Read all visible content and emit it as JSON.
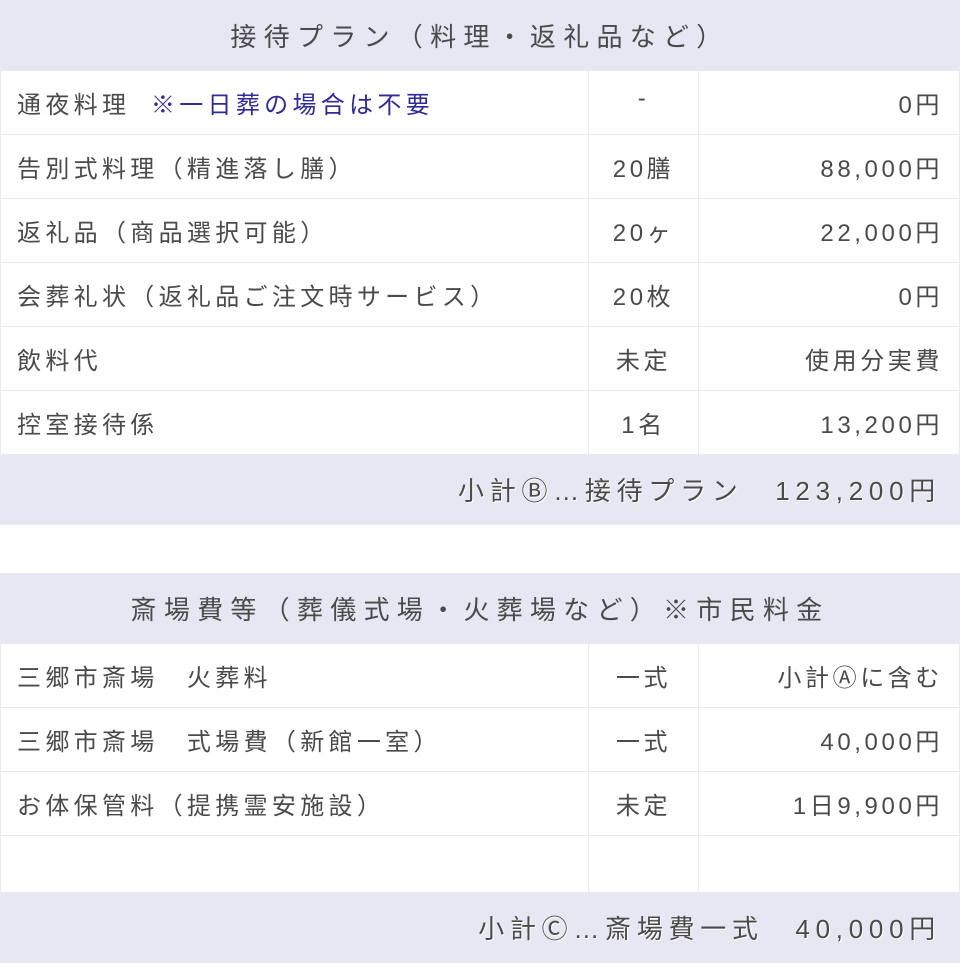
{
  "colors": {
    "header_bg": "#e7e7f3",
    "border": "#e9e9f2",
    "text": "#4a4a4a",
    "note": "#2f2a9b",
    "row_bg": "#ffffff"
  },
  "tables": [
    {
      "title": "接待プラン（料理・返礼品など）",
      "rows": [
        {
          "name": "通夜料理",
          "note": "※一日葬の場合は不要",
          "qty": "-",
          "price": "0円"
        },
        {
          "name": "告別式料理（精進落し膳）",
          "note": "",
          "qty": "20膳",
          "price": "88,000円"
        },
        {
          "name": "返礼品（商品選択可能）",
          "note": "",
          "qty": "20ヶ",
          "price": "22,000円"
        },
        {
          "name": "会葬礼状（返礼品ご注文時サービス）",
          "note": "",
          "qty": "20枚",
          "price": "0円"
        },
        {
          "name": "飲料代",
          "note": "",
          "qty": "未定",
          "price": "使用分実費"
        },
        {
          "name": "控室接待係",
          "note": "",
          "qty": "1名",
          "price": "13,200円"
        }
      ],
      "subtotal": "小計Ⓑ…接待プラン　123,200円"
    },
    {
      "title": "斎場費等（葬儀式場・火葬場など）※市民料金",
      "rows": [
        {
          "name": "三郷市斎場　火葬料",
          "note": "",
          "qty": "一式",
          "price": "小計Ⓐに含む"
        },
        {
          "name": "三郷市斎場　式場費（新館一室）",
          "note": "",
          "qty": "一式",
          "price": "40,000円"
        },
        {
          "name": "お体保管料（提携霊安施設）",
          "note": "",
          "qty": "未定",
          "price": "1日9,900円"
        },
        {
          "name": " ",
          "note": "",
          "qty": " ",
          "price": " "
        }
      ],
      "subtotal": "小計Ⓒ…斎場費一式　40,000円"
    }
  ]
}
